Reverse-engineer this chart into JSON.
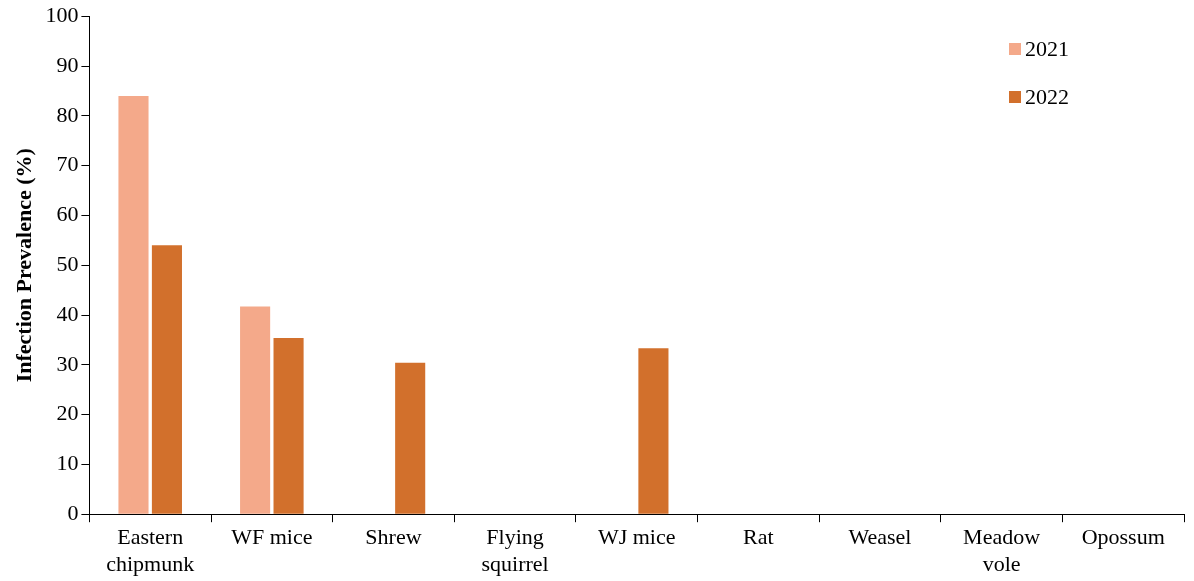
{
  "chart_data": {
    "type": "bar",
    "ylabel": "Infection Prevalence (%)",
    "categories": [
      "Eastern chipmunk",
      "WF mice",
      "Shrew",
      "Flying squirrel",
      "WJ mice",
      "Rat",
      "Weasel",
      "Meadow vole",
      "Opossum"
    ],
    "series": [
      {
        "name": "2021",
        "color": "#f4a98a",
        "values": [
          84,
          41.7,
          0,
          0,
          0,
          0,
          0,
          0,
          0
        ]
      },
      {
        "name": "2022",
        "color": "#d2702c",
        "values": [
          54,
          35.4,
          30.4,
          0,
          33.3,
          0,
          0,
          0,
          0
        ]
      }
    ],
    "ylim": [
      0,
      100
    ],
    "yticks": [
      0,
      10,
      20,
      30,
      40,
      50,
      60,
      70,
      80,
      90,
      100
    ],
    "grid": false,
    "legend": "top right"
  }
}
